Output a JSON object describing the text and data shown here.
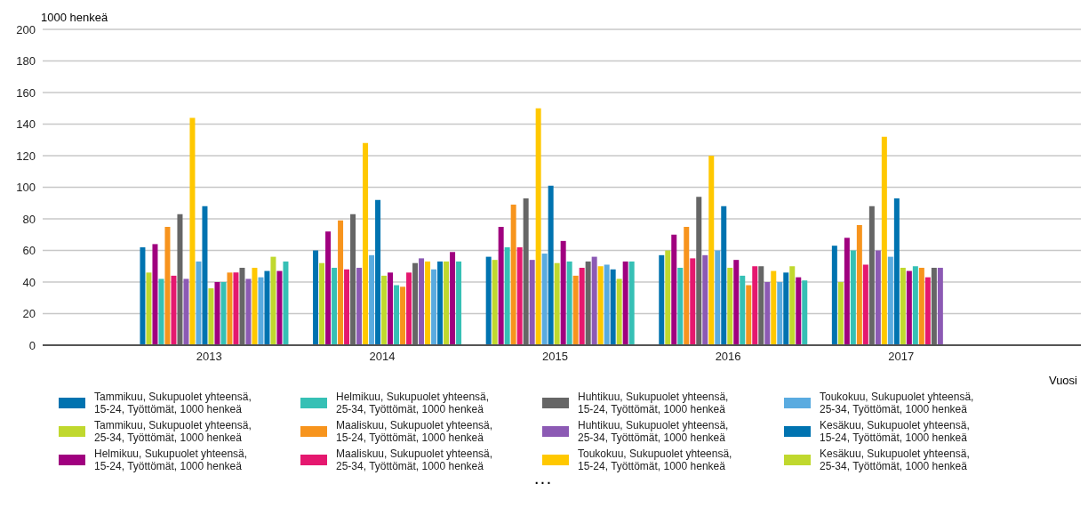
{
  "chart_data": {
    "type": "bar",
    "ylabel": "1000 henkeä",
    "xlabel": "Vuosi",
    "categories": [
      "2013",
      "2014",
      "2015",
      "2016",
      "2017"
    ],
    "ylim": [
      0,
      200
    ],
    "yticks": [
      0,
      20,
      40,
      60,
      80,
      100,
      120,
      140,
      160,
      180,
      200
    ],
    "grid": "y",
    "legend": "bottom",
    "annotations": [
      "..."
    ],
    "series": [
      {
        "name": "Tammikuu, Sukupuolet yhteensä, 15-24, Työttömät, 1000 henkeä",
        "color": "#0073b0",
        "values": [
          62,
          60,
          56,
          57,
          63
        ]
      },
      {
        "name": "Tammikuu, Sukupuolet yhteensä, 25-34, Työttömät, 1000 henkeä",
        "color": "#c0d82e",
        "values": [
          46,
          52,
          54,
          60,
          40
        ]
      },
      {
        "name": "Helmikuu, Sukupuolet yhteensä, 15-24, Työttömät, 1000 henkeä",
        "color": "#a0007f",
        "values": [
          64,
          72,
          75,
          70,
          68
        ]
      },
      {
        "name": "Helmikuu, Sukupuolet yhteensä, 25-34, Työttömät, 1000 henkeä",
        "color": "#36c0b5",
        "values": [
          42,
          49,
          62,
          49,
          60
        ]
      },
      {
        "name": "Maaliskuu, Sukupuolet yhteensä, 15-24, Työttömät, 1000 henkeä",
        "color": "#f7941d",
        "values": [
          75,
          79,
          89,
          75,
          76
        ]
      },
      {
        "name": "Maaliskuu, Sukupuolet yhteensä, 25-34, Työttömät, 1000 henkeä",
        "color": "#e5186f",
        "values": [
          44,
          48,
          62,
          55,
          51
        ]
      },
      {
        "name": "Huhtikuu, Sukupuolet yhteensä, 15-24, Työttömät, 1000 henkeä",
        "color": "#666666",
        "values": [
          83,
          83,
          93,
          94,
          88
        ]
      },
      {
        "name": "Huhtikuu, Sukupuolet yhteensä, 25-34, Työttömät, 1000 henkeä",
        "color": "#8c5ab4",
        "values": [
          42,
          49,
          54,
          57,
          60
        ]
      },
      {
        "name": "Toukokuu, Sukupuolet yhteensä, 15-24, Työttömät, 1000 henkeä",
        "color": "#ffc800",
        "values": [
          144,
          128,
          150,
          120,
          132
        ]
      },
      {
        "name": "Toukokuu, Sukupuolet yhteensä, 25-34, Työttömät, 1000 henkeä",
        "color": "#5aabe0",
        "values": [
          53,
          57,
          58,
          60,
          56
        ]
      },
      {
        "name": "Kesäkuu, Sukupuolet yhteensä, 15-24, Työttömät, 1000 henkeä",
        "color": "#0073b0",
        "values": [
          88,
          92,
          101,
          88,
          93
        ]
      },
      {
        "name": "Kesäkuu, Sukupuolet yhteensä, 25-34, Työttömät, 1000 henkeä",
        "color": "#c0d82e",
        "values": [
          36,
          44,
          52,
          49,
          49
        ]
      },
      {
        "color": "#a0007f",
        "values": [
          40,
          46,
          66,
          54,
          47
        ]
      },
      {
        "color": "#36c0b5",
        "values": [
          40,
          38,
          53,
          44,
          50
        ]
      },
      {
        "color": "#f7941d",
        "values": [
          46,
          37,
          44,
          38,
          49
        ]
      },
      {
        "color": "#e5186f",
        "values": [
          46,
          46,
          49,
          50,
          43
        ]
      },
      {
        "color": "#666666",
        "values": [
          49,
          52,
          53,
          50,
          49
        ]
      },
      {
        "color": "#8c5ab4",
        "values": [
          42,
          55,
          56,
          40,
          49
        ]
      },
      {
        "color": "#ffc800",
        "values": [
          49,
          53,
          50,
          47,
          null
        ]
      },
      {
        "color": "#5aabe0",
        "values": [
          43,
          48,
          51,
          40,
          null
        ]
      },
      {
        "color": "#0073b0",
        "values": [
          47,
          53,
          48,
          46,
          null
        ]
      },
      {
        "color": "#c0d82e",
        "values": [
          56,
          53,
          42,
          50,
          null
        ]
      },
      {
        "color": "#a0007f",
        "values": [
          47,
          59,
          53,
          43,
          null
        ]
      },
      {
        "color": "#36c0b5",
        "values": [
          53,
          53,
          53,
          41,
          null
        ]
      }
    ]
  }
}
